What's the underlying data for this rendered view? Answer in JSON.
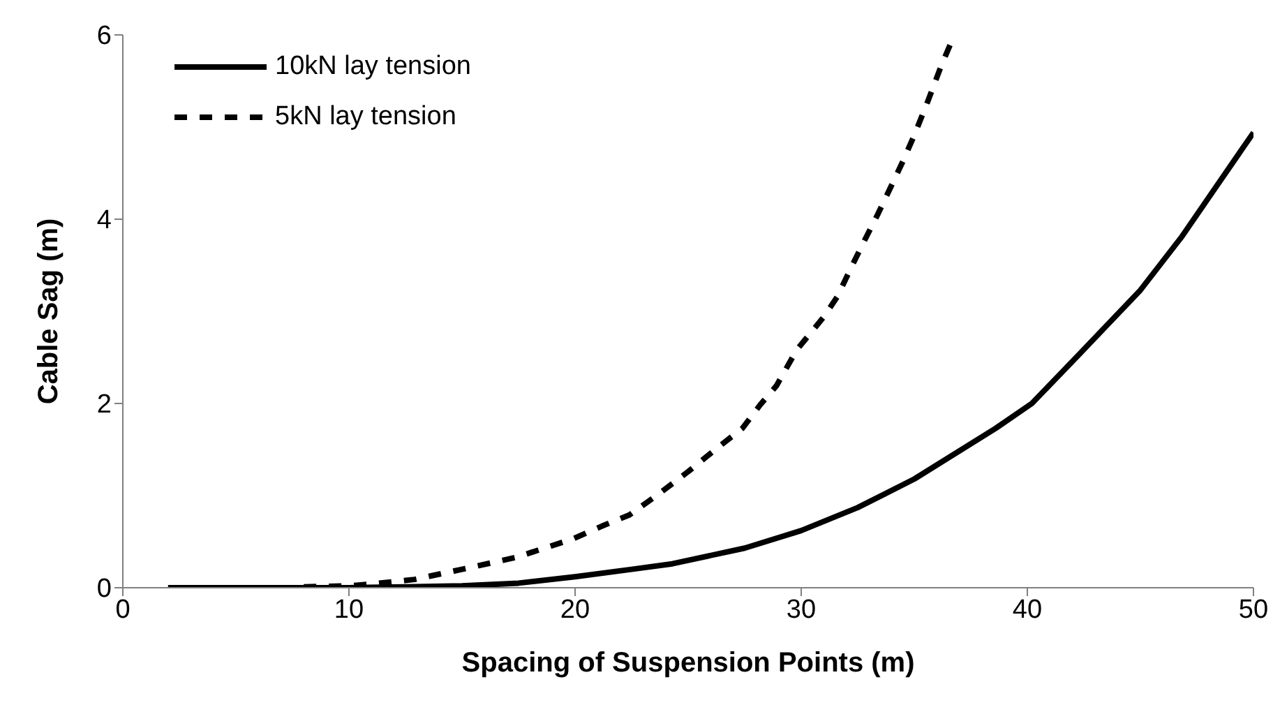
{
  "chart_data": {
    "type": "line",
    "xlabel": "Spacing of Suspension Points (m)",
    "ylabel": "Cable Sag (m)",
    "xlim": [
      0,
      50
    ],
    "xticks": [
      0,
      10,
      20,
      30,
      40,
      50
    ],
    "ylim": [
      0,
      6
    ],
    "yticks": [
      0,
      2,
      4,
      6
    ],
    "grid": false,
    "legend": "top left",
    "marker": "none",
    "series": [
      {
        "name": "10kN lay tension",
        "color": "#000000",
        "line_style": "solid",
        "x": [
          2,
          5,
          8,
          10,
          12.5,
          15,
          17.5,
          20,
          22.5,
          24.3,
          27.5,
          30,
          32.5,
          35,
          38.6,
          40.2,
          42.4,
          45,
          46.8,
          50
        ],
        "values": [
          0,
          0,
          0,
          0,
          0.01,
          0.02,
          0.05,
          0.12,
          0.2,
          0.26,
          0.43,
          0.62,
          0.87,
          1.18,
          1.73,
          2.0,
          2.56,
          3.23,
          3.8,
          4.94
        ]
      },
      {
        "name": "5kN lay tension",
        "color": "#000000",
        "line_style": "dashed",
        "x": [
          8,
          10,
          11,
          12.9,
          15,
          17.4,
          19.9,
          21.2,
          22.4,
          23.6,
          25,
          26.3,
          27.4,
          28.2,
          28.9,
          29.8,
          31,
          31.6,
          32.2,
          32.7,
          33.4,
          34,
          34.5,
          35,
          35.6,
          36.2,
          36.6
        ],
        "values": [
          0.01,
          0.02,
          0.04,
          0.09,
          0.2,
          0.33,
          0.53,
          0.67,
          0.79,
          1.0,
          1.26,
          1.52,
          1.73,
          1.99,
          2.19,
          2.58,
          2.94,
          3.16,
          3.47,
          3.72,
          4.06,
          4.37,
          4.63,
          4.91,
          5.28,
          5.67,
          5.9
        ]
      }
    ]
  }
}
